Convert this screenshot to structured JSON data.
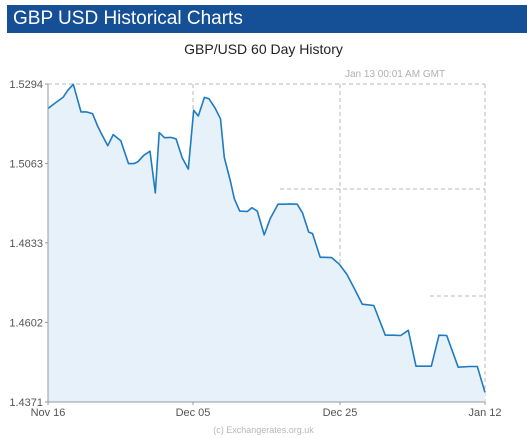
{
  "header": {
    "title": "GBP USD Historical Charts"
  },
  "chart_title": "GBP/USD  60 Day History",
  "timestamp": "Jan 13  00:01 AM GMT",
  "footer": "(c) Exchangerates.org.uk",
  "colors": {
    "header_bg": "#154f96",
    "line": "#1f7bc0",
    "fill": "#e6f1fa",
    "grid": "#b8b8b8"
  },
  "chart_data": {
    "type": "area",
    "title": "GBP/USD  60 Day History",
    "xlabel": "",
    "ylabel": "",
    "ylim": [
      1.4371,
      1.5294
    ],
    "y_ticks": [
      "1.5294",
      "1.5063",
      "1.4833",
      "1.4602",
      "1.4371"
    ],
    "x_ticks": [
      "Nov 16",
      "Dec 05",
      "Dec 25",
      "Jan 12"
    ],
    "grid": "dashed",
    "x_range_days": [
      0,
      57
    ],
    "series": [
      {
        "x": [
          0,
          1,
          2,
          2.6,
          3.3,
          4.3,
          5,
          5.8,
          6.5,
          7,
          7.8,
          8.5,
          9.5,
          10.5,
          11.2,
          11.7,
          12.5,
          13.3,
          14,
          14.5,
          15.2,
          16,
          16.7,
          17.5,
          18.3,
          19,
          19.6,
          20.4,
          21,
          21.8,
          22.5,
          23,
          23.8,
          24.3,
          25,
          26,
          26.6,
          27.3,
          28.2,
          29,
          30,
          31,
          31.5,
          32.5,
          33.2,
          34,
          34.5,
          35.5,
          36,
          37,
          38,
          39,
          40,
          41,
          42.5,
          44,
          45,
          46,
          47,
          48,
          49,
          50,
          51,
          52,
          53.5,
          55,
          56,
          57
        ],
        "values": [
          1.5223,
          1.524,
          1.5256,
          1.5276,
          1.5293,
          1.5213,
          1.5213,
          1.5208,
          1.5171,
          1.5148,
          1.5115,
          1.5147,
          1.5129,
          1.5063,
          1.5063,
          1.5068,
          1.5087,
          1.5099,
          1.4978,
          1.5153,
          1.5138,
          1.5139,
          1.5135,
          1.508,
          1.5047,
          1.5218,
          1.5201,
          1.5255,
          1.5251,
          1.5224,
          1.5193,
          1.5081,
          1.5011,
          1.4961,
          1.4925,
          1.4924,
          1.4935,
          1.4925,
          1.4856,
          1.4904,
          1.4945,
          1.4945,
          1.4946,
          1.4945,
          1.492,
          1.4864,
          1.486,
          1.4791,
          1.4791,
          1.479,
          1.4771,
          1.4741,
          1.4698,
          1.4655,
          1.4651,
          1.4565,
          1.4565,
          1.4564,
          1.4579,
          1.4475,
          1.4475,
          1.4475,
          1.4565,
          1.4564,
          1.4472,
          1.4474,
          1.4474,
          1.4399
        ]
      }
    ]
  }
}
